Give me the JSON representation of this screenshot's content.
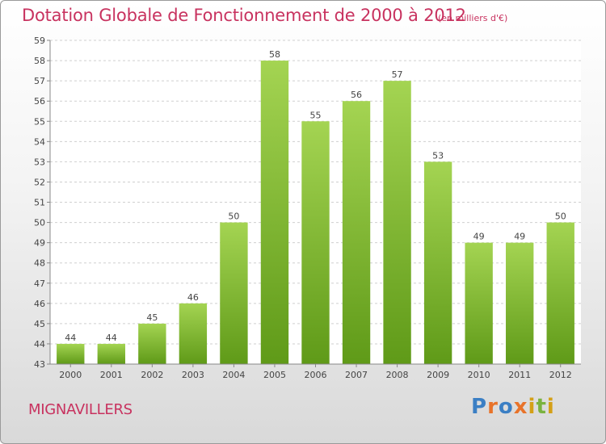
{
  "title": "Dotation Globale de Fonctionnement de 2000 à 2012",
  "subtitle": "(en milliers d'€)",
  "commune": "MIGNAVILLERS",
  "logo": {
    "letters": [
      "P",
      "r",
      "o",
      "x",
      "i",
      "t",
      "i"
    ],
    "colors": [
      "#3b7fc4",
      "#e8732a",
      "#3b7fc4",
      "#e8732a",
      "#d4a017",
      "#7ab33f",
      "#d4a017"
    ]
  },
  "chart_data": {
    "type": "bar",
    "categories": [
      "2000",
      "2001",
      "2002",
      "2003",
      "2004",
      "2005",
      "2006",
      "2007",
      "2008",
      "2009",
      "2010",
      "2011",
      "2012"
    ],
    "values": [
      44,
      44,
      45,
      46,
      50,
      58,
      55,
      56,
      57,
      53,
      49,
      49,
      50
    ],
    "ylim": [
      43,
      59
    ],
    "yticks": [
      43,
      44,
      45,
      46,
      47,
      48,
      49,
      50,
      51,
      52,
      53,
      54,
      55,
      56,
      57,
      58,
      59
    ],
    "grid": true,
    "bar_color_top": "#a4d452",
    "bar_color_bottom": "#5f9a18"
  }
}
